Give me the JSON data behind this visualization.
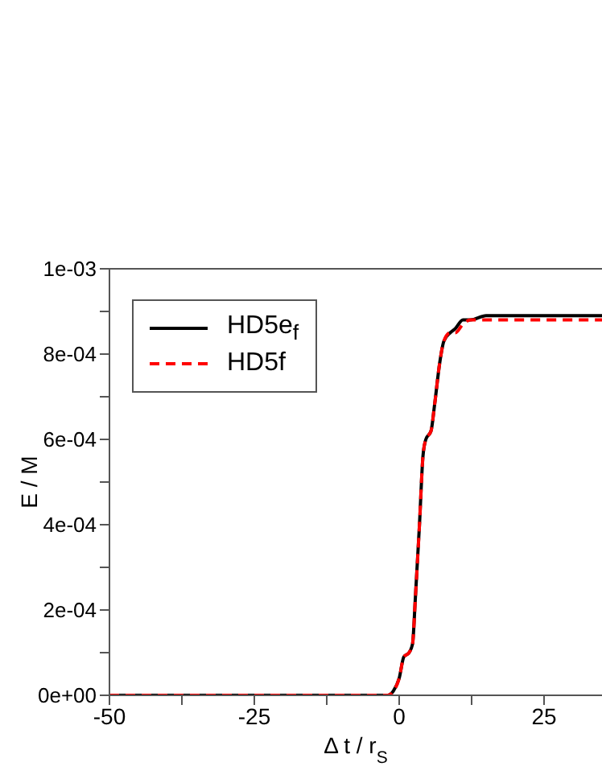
{
  "chart_data": {
    "type": "line",
    "xlabel": "Δ t / r$_{S}$",
    "ylabel": "E / M",
    "xlim": [
      -50,
      35
    ],
    "ylim": [
      0,
      0.001
    ],
    "xticks": [
      -50,
      {
        "value": -37.5,
        "label": null
      },
      -25,
      {
        "value": -12.5,
        "label": null
      },
      0,
      {
        "value": 12.5,
        "label": null
      },
      25
    ],
    "yticks": [
      {
        "value": 0,
        "label": "0e+00"
      },
      {
        "value": 0.0001,
        "label": null
      },
      {
        "value": 0.0002,
        "label": "2e-04"
      },
      {
        "value": 0.0003,
        "label": null
      },
      {
        "value": 0.0004,
        "label": "4e-04"
      },
      {
        "value": 0.0005,
        "label": null
      },
      {
        "value": 0.0006,
        "label": "6e-04"
      },
      {
        "value": 0.0007,
        "label": null
      },
      {
        "value": 0.0008,
        "label": "8e-04"
      },
      {
        "value": 0.0009,
        "label": null
      },
      {
        "value": 0.001,
        "label": "1e-03"
      }
    ],
    "grid": false,
    "legend": "top left",
    "marker": "none",
    "series": [
      {
        "name": "HD5e$_{f}$",
        "color": "#000000",
        "line_style": "solid",
        "x": [
          -50,
          -25,
          -2,
          -1,
          0,
          0.8,
          1.7,
          2.3,
          2.8,
          3.5,
          4.1,
          4.6,
          5.5,
          6.1,
          7,
          7.7,
          8.8,
          9.7,
          11,
          12.3,
          15,
          25,
          35
        ],
        "values": [
          0,
          0,
          0,
          1e-05,
          4e-05,
          9e-05,
          0.0001,
          0.00012,
          0.00023,
          0.0004,
          0.00056,
          0.0006,
          0.00062,
          0.00068,
          0.00078,
          0.00083,
          0.00085,
          0.00086,
          0.00088,
          0.00088,
          0.00089,
          0.00089,
          0.00089
        ]
      },
      {
        "name": "HD5f",
        "color": "#ff0000",
        "line_style": "dashed",
        "x": [
          -50,
          -25,
          -2,
          -1,
          0,
          0.8,
          1.7,
          2.3,
          2.8,
          3.5,
          4.1,
          4.6,
          5.5,
          6.1,
          7,
          7.7,
          8.8,
          9.7,
          11,
          12.3,
          15,
          25,
          35
        ],
        "values": [
          0,
          0,
          0,
          1e-05,
          4e-05,
          9e-05,
          0.0001,
          0.00012,
          0.00023,
          0.0004,
          0.00056,
          0.0006,
          0.00062,
          0.00068,
          0.00078,
          0.00083,
          0.00085,
          0.00085,
          0.00087,
          0.00088,
          0.00088,
          0.00088,
          0.00088
        ]
      }
    ]
  }
}
